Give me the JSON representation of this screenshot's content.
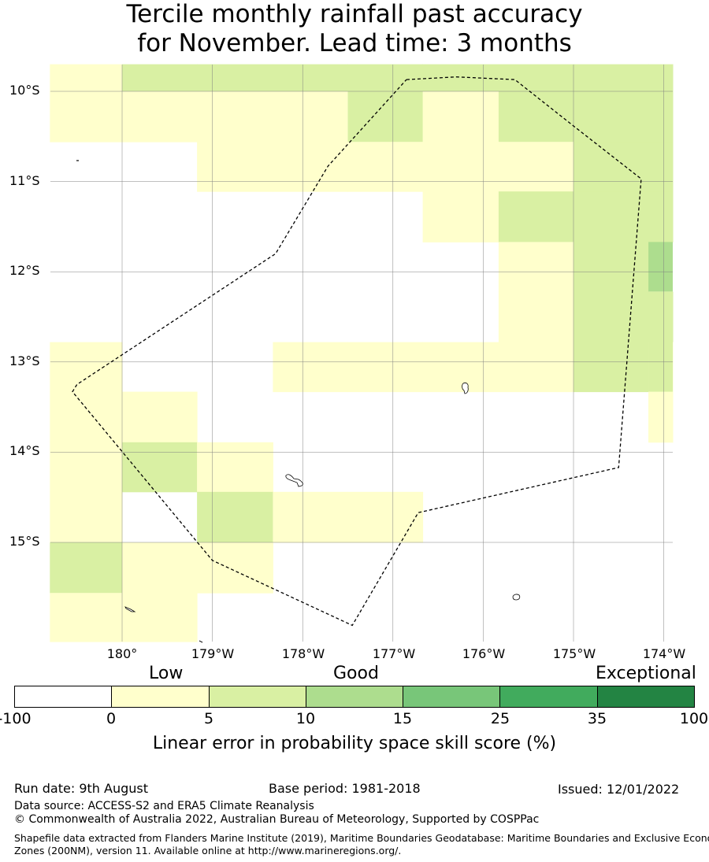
{
  "title": {
    "line1": "Tercile monthly rainfall past accuracy",
    "line2": "for November. Lead time: 3 months"
  },
  "map": {
    "lon_labels": [
      "180°",
      "179°W",
      "178°W",
      "177°W",
      "176°W",
      "175°W",
      "174°W"
    ],
    "lat_labels": [
      "10°S",
      "11°S",
      "12°S",
      "13°S",
      "14°S",
      "15°S"
    ],
    "colors": {
      "white": "#ffffff",
      "c0_5": "#ffffcc",
      "c5_10": "#d9f0a3",
      "c10_15": "#addd8e",
      "c15_25": "#78c679",
      "c25_35": "#41ab5d",
      "c35_100": "#238443",
      "grid": "#808080",
      "boundary": "#000000"
    },
    "grid_cells": {
      "lons_west_edge": [
        -180.8,
        -180.0,
        -179.17,
        -178.33,
        -177.5,
        -176.67,
        -175.83,
        -175.0,
        -174.17
      ],
      "lons_east_edge": [
        -180.0,
        -179.17,
        -178.33,
        -177.5,
        -176.67,
        -175.83,
        -175.0,
        -174.17,
        -173.9
      ],
      "lats_top_edge": [
        -9.7,
        -10.0,
        -10.56,
        -11.11,
        -11.67,
        -12.22,
        -12.78,
        -13.33,
        -13.89,
        -14.44,
        -15.0,
        -15.56
      ],
      "lats_bottom_edge": [
        -10.0,
        -10.56,
        -11.11,
        -11.67,
        -12.22,
        -12.78,
        -13.33,
        -13.89,
        -14.44,
        -15.0,
        -15.56,
        -16.1
      ],
      "rows": [
        "ABBBBBBBB",
        "AAAABABBB",
        "W.AAAAABB",
        "W.W.WABBB",
        "W.W.W.AB.",
        "W.W.W.ABB",
        "AWWAAAABA",
        "AAWWW..WA",
        "ABAWWWWWW",
        "AWBAAWWWW",
        "BAAWWWWWW",
        "AAWWWWWWW"
      ]
    },
    "eez_boundary_lonlat": [
      [
        -176.85,
        -9.87
      ],
      [
        -176.3,
        -9.84
      ],
      [
        -175.65,
        -9.87
      ],
      [
        -174.98,
        -10.4
      ],
      [
        -174.25,
        -10.97
      ],
      [
        -174.5,
        -14.17
      ],
      [
        -176.72,
        -14.67
      ],
      [
        -177.45,
        -15.92
      ],
      [
        -179.0,
        -15.2
      ],
      [
        -180.55,
        -13.33
      ],
      [
        -180.5,
        -13.25
      ],
      [
        -178.3,
        -11.8
      ],
      [
        -177.72,
        -10.83
      ],
      [
        -176.85,
        -9.87
      ]
    ]
  },
  "colorbar": {
    "categories": [
      "Low",
      "Good",
      "Exceptional"
    ],
    "ticks": [
      "-100",
      "0",
      "5",
      "10",
      "15",
      "25",
      "35",
      "100"
    ],
    "colors": [
      "#ffffff",
      "#ffffcc",
      "#d9f0a3",
      "#addd8e",
      "#78c679",
      "#41ab5d",
      "#238443"
    ],
    "label": "Linear error in probability space skill score (%)"
  },
  "footer": {
    "run_date": "Run date: 9th August",
    "base_period": "Base period: 1981-2018",
    "issued": "Issued: 12/01/2022",
    "data_source": "Data source: ACCESS-S2 and ERA5 Climate Reanalysis",
    "copyright": "© Commonwealth of Australia 2022, Australian Bureau of Meteorology, Supported by COSPPac",
    "shapefile_line1": "Shapefile data extracted from Flanders Marine Institute (2019), Maritime Boundaries Geodatabase: Maritime Boundaries and Exclusive Economic",
    "shapefile_line2": "Zones (200NM), version 11. Available online at http://www.marineregions.org/."
  }
}
